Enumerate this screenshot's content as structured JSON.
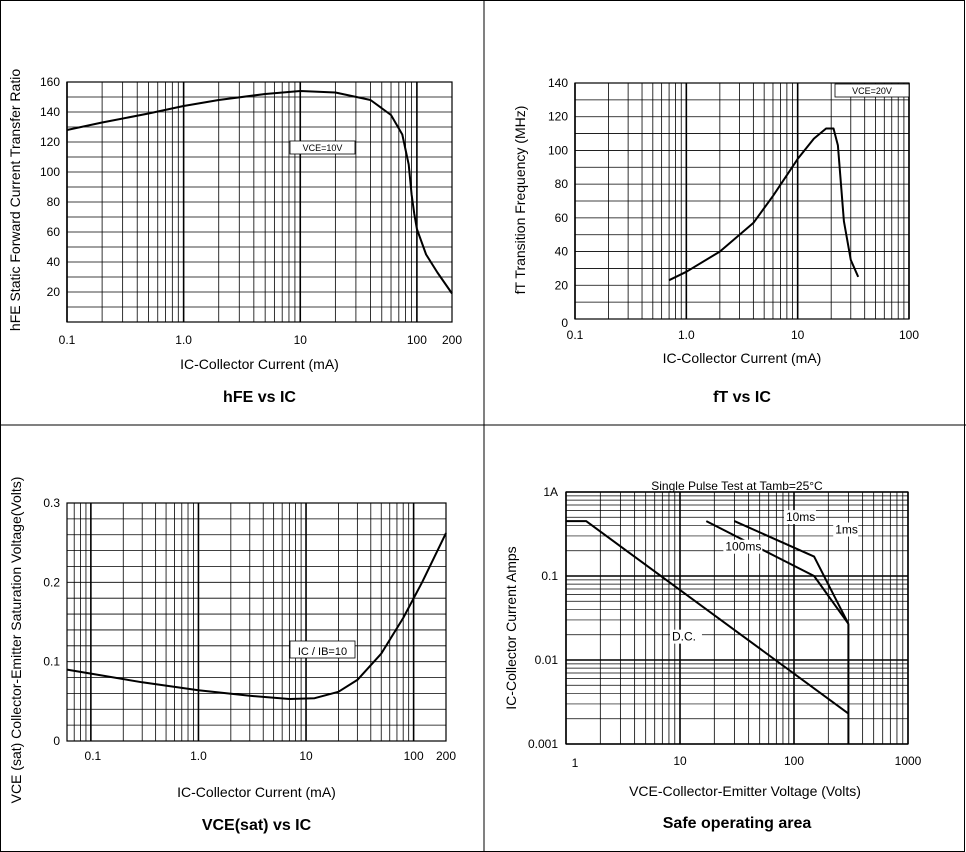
{
  "chart_data": [
    {
      "type": "line",
      "title": "hFE vs IC",
      "xlabel": "IC-Collector Current  (mA)",
      "ylabel": "hFE Static Forward Current Transfer Ratio",
      "xscale": "log",
      "xlim": [
        0.1,
        200
      ],
      "ylim": [
        0,
        160
      ],
      "xticks": [
        0.1,
        1,
        10,
        100,
        200
      ],
      "xtick_labels": [
        "0.1",
        "1.0",
        "10",
        "100",
        "200"
      ],
      "yticks": [
        20,
        40,
        60,
        80,
        100,
        120,
        140,
        160
      ],
      "ytick_labels": [
        "20",
        "40",
        "60",
        "80",
        "100",
        "120",
        "140",
        "160"
      ],
      "grid": true,
      "annotations": [
        "VCE=10V"
      ],
      "series": [
        {
          "x": [
            0.1,
            0.2,
            0.5,
            1,
            2,
            5,
            10,
            20,
            40,
            60,
            75,
            85,
            90,
            95,
            100,
            120,
            150,
            200
          ],
          "y": [
            128,
            133,
            139,
            144,
            148,
            152,
            154,
            153,
            148,
            138,
            125,
            105,
            85,
            72,
            62,
            45,
            33,
            19
          ]
        }
      ]
    },
    {
      "type": "line",
      "title": "fT vs IC",
      "xlabel": "IC-Collector Current  (mA)",
      "ylabel": "fT Transition Frequency (MHz)",
      "xscale": "log",
      "xlim": [
        0.1,
        100
      ],
      "ylim": [
        0,
        140
      ],
      "xticks": [
        0.1,
        1,
        10,
        100
      ],
      "xtick_labels": [
        "0.1",
        "1.0",
        "10",
        "100"
      ],
      "yticks": [
        0,
        20,
        40,
        60,
        80,
        100,
        120,
        140
      ],
      "ytick_labels": [
        "0",
        "20",
        "40",
        "60",
        "80",
        "100",
        "120",
        "140"
      ],
      "grid": true,
      "annotations": [
        "VCE=20V"
      ],
      "series": [
        {
          "x": [
            0.7,
            1,
            2,
            4,
            6,
            10,
            14,
            18,
            21,
            23,
            26,
            30,
            35
          ],
          "y": [
            23,
            28,
            40,
            57,
            73,
            95,
            107,
            113,
            113,
            103,
            58,
            35,
            25
          ]
        }
      ]
    },
    {
      "type": "line",
      "title": "VCE(sat) vs IC",
      "xlabel": "IC-Collector Current  (mA)",
      "ylabel": "VCE (sat) Collector-Emitter Saturation Voltage(Volts)",
      "xscale": "log",
      "xlim": [
        0.06,
        200
      ],
      "ylim": [
        0,
        0.3
      ],
      "xticks": [
        0.1,
        1,
        10,
        100,
        200
      ],
      "xtick_labels": [
        "0.1",
        "1.0",
        "10",
        "100",
        "200"
      ],
      "yticks": [
        0,
        0.1,
        0.2,
        0.3
      ],
      "ytick_labels": [
        "0",
        "0.1",
        "0.2",
        "0.3"
      ],
      "grid": true,
      "annotations": [
        "IC / IB=10"
      ],
      "series": [
        {
          "x": [
            0.06,
            0.1,
            0.3,
            1,
            3,
            7,
            12,
            20,
            30,
            50,
            80,
            120,
            200
          ],
          "y": [
            0.09,
            0.085,
            0.074,
            0.064,
            0.057,
            0.053,
            0.054,
            0.062,
            0.077,
            0.11,
            0.155,
            0.2,
            0.262
          ]
        }
      ]
    },
    {
      "type": "line",
      "title": "Safe operating area",
      "subtitle": "Single Pulse Test at Tamb=25°C",
      "xlabel": "VCE-Collector-Emitter Voltage (Volts)",
      "ylabel": "IC-Collector Current Amps",
      "xscale": "log",
      "yscale": "log",
      "xlim": [
        1,
        1000
      ],
      "ylim": [
        0.001,
        1
      ],
      "xticks": [
        1,
        10,
        100,
        1000
      ],
      "xtick_labels": [
        "1",
        "10",
        "100",
        "1000"
      ],
      "yticks": [
        0.001,
        0.01,
        0.1,
        1
      ],
      "ytick_labels": [
        "0.001",
        "0.01",
        "0.1",
        "1A"
      ],
      "grid": true,
      "series": [
        {
          "name": "D.C.",
          "x": [
            1,
            1.5,
            300
          ],
          "y": [
            0.45,
            0.45,
            0.0023
          ]
        },
        {
          "name": "100ms",
          "x": [
            17,
            150,
            300
          ],
          "y": [
            0.45,
            0.1,
            0.027
          ]
        },
        {
          "name": "10ms",
          "x": [
            30,
            150,
            300
          ],
          "y": [
            0.45,
            0.17,
            0.027
          ]
        },
        {
          "name": "1ms",
          "x": [
            300,
            300
          ],
          "y": [
            0.027,
            0.001
          ]
        }
      ]
    }
  ]
}
